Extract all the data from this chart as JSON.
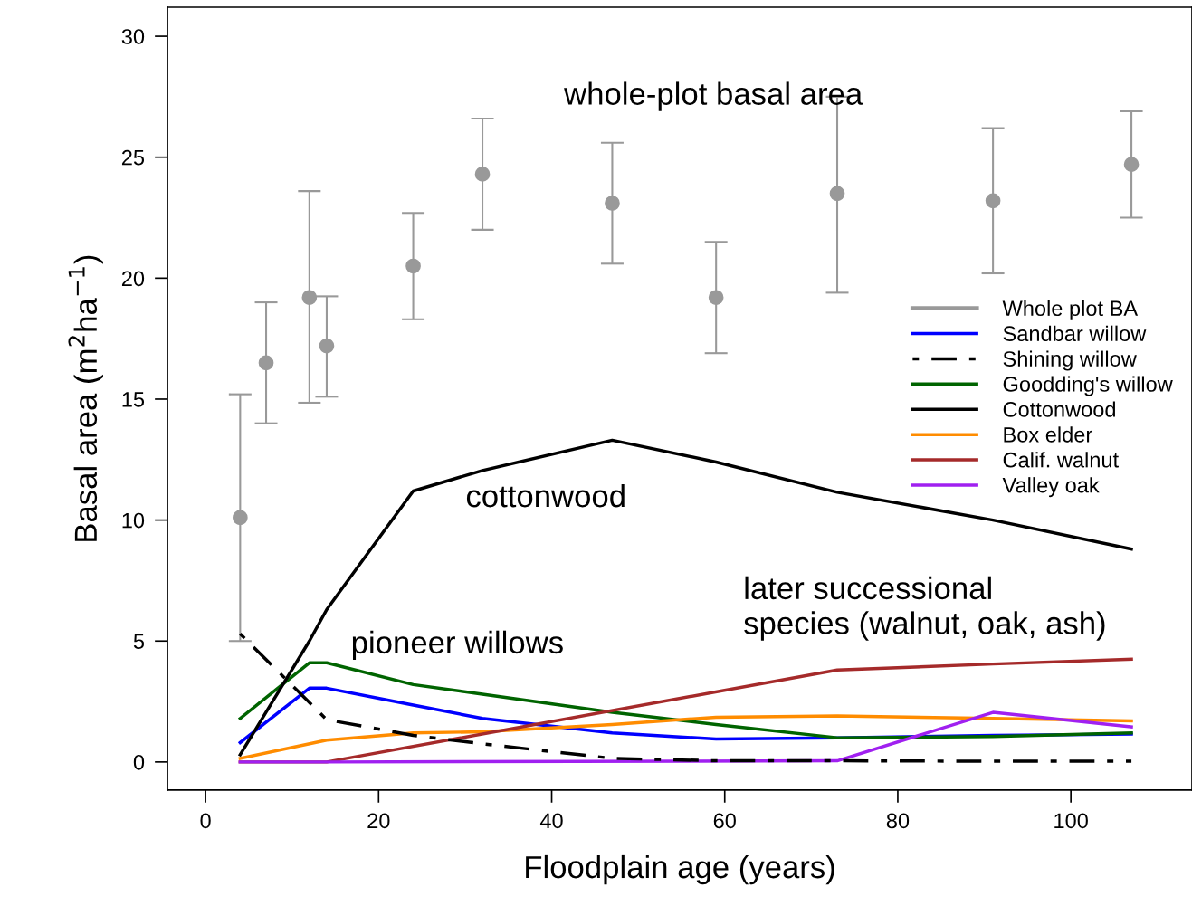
{
  "chart_data": {
    "type": "line",
    "xlabel": "Floodplain age (years)",
    "ylabel": "Basal area (m$^{2}$ha$^{−1}$)",
    "xlim": [
      -4.4,
      114
    ],
    "xticks": [
      0,
      20,
      40,
      60,
      80,
      100
    ],
    "ylim": [
      -1.16,
      31.2
    ],
    "yticks": [
      0,
      5,
      10,
      15,
      20,
      25,
      30
    ],
    "grid": false,
    "legend": "right",
    "marker": "none",
    "annotations": [
      "whole-plot basal area",
      "cottonwood",
      "pioneer willows",
      "later successional\nspecies (walnut, oak, ash)"
    ],
    "series": [
      {
        "name": "Whole plot BA",
        "type": "scatter",
        "marker": "circle",
        "color": "#999999",
        "x": [
          4,
          7,
          12,
          14,
          24,
          32,
          47,
          59,
          73,
          91,
          107
        ],
        "values": [
          10.1,
          16.5,
          19.2,
          17.2,
          20.5,
          24.3,
          23.1,
          19.2,
          23.5,
          23.2,
          24.7
        ],
        "errors": [
          [
            5.0,
            15.2
          ],
          [
            14.0,
            19.0
          ],
          [
            14.85,
            23.6
          ],
          [
            15.1,
            19.25
          ],
          [
            18.3,
            22.7
          ],
          [
            22.0,
            26.6
          ],
          [
            20.6,
            25.6
          ],
          [
            16.9,
            21.5
          ],
          [
            19.4,
            27.5
          ],
          [
            20.2,
            26.2
          ],
          [
            22.5,
            26.9
          ]
        ]
      },
      {
        "name": "Sandbar willow",
        "color": "#0000ff",
        "x": [
          4,
          12,
          14,
          24,
          32,
          47,
          59,
          73,
          91,
          107
        ],
        "values": [
          0.8,
          3.05,
          3.05,
          2.35,
          1.8,
          1.2,
          0.95,
          1.0,
          1.1,
          1.15
        ]
      },
      {
        "name": "Shining willow",
        "color": "#000000",
        "line_style": "dashdot",
        "x": [
          4,
          14,
          24,
          32,
          47,
          59,
          73,
          91,
          107
        ],
        "values": [
          5.3,
          1.75,
          1.1,
          0.75,
          0.15,
          0.05,
          0.05,
          0.03,
          0.03
        ]
      },
      {
        "name": "Goodding's willow",
        "color": "#006400",
        "x": [
          4,
          12,
          14,
          24,
          32,
          47,
          59,
          73,
          91,
          107
        ],
        "values": [
          1.8,
          4.1,
          4.1,
          3.2,
          2.8,
          2.05,
          1.55,
          1.0,
          1.05,
          1.2
        ]
      },
      {
        "name": "Cottonwood",
        "color": "#000000",
        "x": [
          4,
          12,
          14,
          24,
          32,
          47,
          59,
          73,
          91,
          107
        ],
        "values": [
          0.3,
          5.0,
          6.3,
          11.2,
          12.05,
          13.3,
          12.4,
          11.15,
          10.0,
          8.8
        ]
      },
      {
        "name": "Box elder",
        "color": "#ff8c00",
        "x": [
          4,
          14,
          24,
          32,
          47,
          59,
          73,
          91,
          107
        ],
        "values": [
          0.15,
          0.9,
          1.2,
          1.25,
          1.55,
          1.85,
          1.9,
          1.8,
          1.7
        ]
      },
      {
        "name": "Calif. walnut",
        "color": "#a52a2a",
        "x": [
          4,
          14,
          73,
          91,
          107
        ],
        "values": [
          0,
          0,
          3.8,
          4.05,
          4.25
        ]
      },
      {
        "name": "Valley oak",
        "color": "#a020f0",
        "x": [
          4,
          14,
          73,
          91,
          107
        ],
        "values": [
          0,
          0,
          0.05,
          2.05,
          1.45
        ]
      }
    ]
  }
}
